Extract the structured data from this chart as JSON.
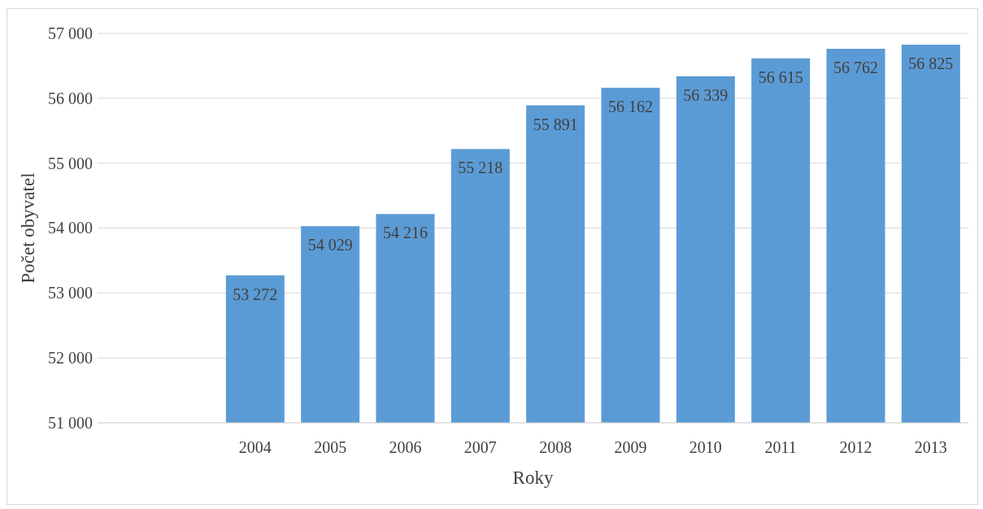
{
  "chart_data": {
    "type": "bar",
    "xlabel": "Roky",
    "ylabel": "Počet obyvatel",
    "categories": [
      null,
      null,
      "2004",
      "2005",
      "2006",
      "2007",
      "2008",
      "2009",
      "2010",
      "2011",
      "2012",
      "2013"
    ],
    "values": [
      null,
      null,
      53272,
      54029,
      54216,
      55218,
      55891,
      56162,
      56339,
      56615,
      56762,
      56825
    ],
    "value_labels": [
      null,
      null,
      "53 272",
      "54 029",
      "54 216",
      "55 218",
      "55 891",
      "56 162",
      "56 339",
      "56 615",
      "56 762",
      "56 825"
    ],
    "color": "#5b9bd5",
    "ylim": [
      51000,
      57000
    ],
    "yticks": [
      {
        "value": 51000,
        "label": "51 000"
      },
      {
        "value": 52000,
        "label": "52 000"
      },
      {
        "value": 53000,
        "label": "53 000"
      },
      {
        "value": 54000,
        "label": "54 000"
      },
      {
        "value": 55000,
        "label": "55 000"
      },
      {
        "value": 56000,
        "label": "56 000"
      },
      {
        "value": 57000,
        "label": "57 000"
      }
    ],
    "grid": "y"
  }
}
